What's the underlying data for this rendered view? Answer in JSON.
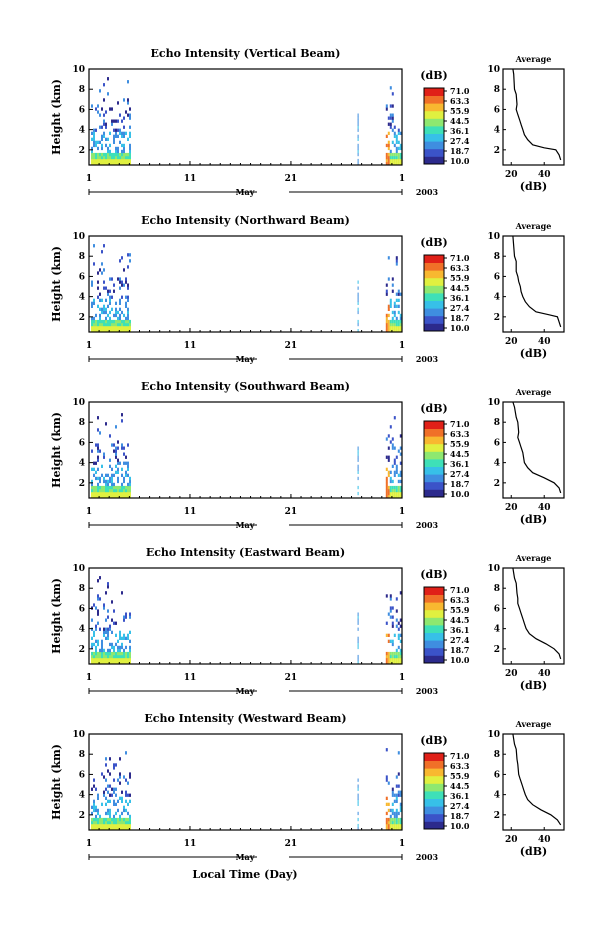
{
  "figure": {
    "x_axis_label": "Local Time (Day)",
    "month_label": "May",
    "year_label": "2003",
    "y_axis_label": "Height (km)",
    "colorbar_title": "(dB)",
    "colorbar_ticks": [
      "71.0",
      "63.3",
      "55.9",
      "44.5",
      "36.1",
      "27.4",
      "18.7",
      "10.0"
    ],
    "x_ticks": [
      "1",
      "11",
      "21",
      "1"
    ],
    "y_ticks": [
      "2",
      "4",
      "6",
      "8",
      "10"
    ],
    "avg_title": "Average",
    "avg_xlabel": "(dB)",
    "avg_x_ticks": [
      "20",
      "40"
    ],
    "colors": {
      "colorscale": [
        "#2c2a8c",
        "#3b53c8",
        "#3f8ee0",
        "#37c0e8",
        "#3ee0b8",
        "#8ee870",
        "#e0f040",
        "#f8b830",
        "#f07028",
        "#e02018"
      ]
    }
  },
  "chart_data": [
    {
      "type": "heatmap",
      "title": "Echo Intensity (Vertical Beam)",
      "x_range_days": [
        1,
        32
      ],
      "ylim": [
        0.5,
        10
      ],
      "ylabel": "Height (km)",
      "xlabel": "May",
      "color_range_db": [
        10.0,
        71.0
      ],
      "data_periods": [
        [
          1.2,
          5.0
        ],
        [
          27.6,
          27.7
        ],
        [
          30.4,
          31.8
        ]
      ],
      "average_profile": {
        "xlim": [
          15,
          52
        ],
        "ylim": [
          0.5,
          10
        ],
        "points": [
          [
            21,
            10
          ],
          [
            21.5,
            9.5
          ],
          [
            22,
            8
          ],
          [
            23,
            7.5
          ],
          [
            23.5,
            6.5
          ],
          [
            23,
            6
          ],
          [
            24,
            5.5
          ],
          [
            25,
            5
          ],
          [
            26,
            4.5
          ],
          [
            27,
            4
          ],
          [
            28,
            3.5
          ],
          [
            30,
            3
          ],
          [
            33,
            2.5
          ],
          [
            40,
            2.2
          ],
          [
            47,
            2.0
          ],
          [
            49,
            1.5
          ],
          [
            50,
            1.0
          ]
        ]
      }
    },
    {
      "type": "heatmap",
      "title": "Echo Intensity (Northward Beam)",
      "x_range_days": [
        1,
        32
      ],
      "ylim": [
        0.5,
        10
      ],
      "ylabel": "Height (km)",
      "xlabel": "May",
      "color_range_db": [
        10.0,
        71.0
      ],
      "data_periods": [
        [
          1.2,
          5.0
        ],
        [
          27.6,
          27.7
        ],
        [
          30.4,
          31.8
        ]
      ],
      "average_profile": {
        "xlim": [
          15,
          52
        ],
        "ylim": [
          0.5,
          10
        ],
        "points": [
          [
            21,
            10
          ],
          [
            21.5,
            9
          ],
          [
            22,
            8
          ],
          [
            23,
            7.5
          ],
          [
            23,
            6.5
          ],
          [
            24,
            6
          ],
          [
            24.5,
            5.5
          ],
          [
            25.5,
            5
          ],
          [
            26,
            4.5
          ],
          [
            27,
            4
          ],
          [
            28.5,
            3.5
          ],
          [
            31,
            3
          ],
          [
            35,
            2.5
          ],
          [
            43,
            2.2
          ],
          [
            48,
            2.0
          ],
          [
            49,
            1.5
          ],
          [
            50,
            1.0
          ]
        ]
      }
    },
    {
      "type": "heatmap",
      "title": "Echo Intensity (Southward Beam)",
      "x_range_days": [
        1,
        32
      ],
      "ylim": [
        0.5,
        10
      ],
      "ylabel": "Height (km)",
      "xlabel": "May",
      "color_range_db": [
        10.0,
        71.0
      ],
      "data_periods": [
        [
          1.2,
          5.0
        ],
        [
          27.6,
          27.7
        ],
        [
          30.4,
          31.8
        ]
      ],
      "average_profile": {
        "xlim": [
          15,
          52
        ],
        "ylim": [
          0.5,
          10
        ],
        "points": [
          [
            21,
            10
          ],
          [
            22,
            9.5
          ],
          [
            23,
            8.5
          ],
          [
            24,
            8
          ],
          [
            24.5,
            7
          ],
          [
            24,
            6.5
          ],
          [
            25,
            6
          ],
          [
            26,
            5.5
          ],
          [
            27,
            5
          ],
          [
            27.5,
            4.5
          ],
          [
            28,
            4
          ],
          [
            30,
            3.5
          ],
          [
            33,
            3
          ],
          [
            40,
            2.5
          ],
          [
            46,
            2.0
          ],
          [
            49,
            1.5
          ],
          [
            50,
            1.0
          ]
        ]
      }
    },
    {
      "type": "heatmap",
      "title": "Echo Intensity (Eastward Beam)",
      "x_range_days": [
        1,
        32
      ],
      "ylim": [
        0.5,
        10
      ],
      "ylabel": "Height (km)",
      "xlabel": "May",
      "color_range_db": [
        10.0,
        71.0
      ],
      "data_periods": [
        [
          1.2,
          5.0
        ],
        [
          27.6,
          27.7
        ],
        [
          30.4,
          31.8
        ]
      ],
      "average_profile": {
        "xlim": [
          15,
          52
        ],
        "ylim": [
          0.5,
          10
        ],
        "points": [
          [
            21,
            10
          ],
          [
            21.5,
            9.5
          ],
          [
            22,
            9
          ],
          [
            23,
            8.5
          ],
          [
            23.5,
            7.5
          ],
          [
            24,
            7
          ],
          [
            24,
            6.5
          ],
          [
            25,
            6
          ],
          [
            26,
            5.5
          ],
          [
            27,
            5
          ],
          [
            28,
            4.5
          ],
          [
            29,
            4
          ],
          [
            31,
            3.5
          ],
          [
            35,
            3
          ],
          [
            41,
            2.5
          ],
          [
            46,
            2.0
          ],
          [
            49,
            1.5
          ],
          [
            50,
            1.0
          ]
        ]
      }
    },
    {
      "type": "heatmap",
      "title": "Echo Intensity (Westward Beam)",
      "x_range_days": [
        1,
        32
      ],
      "ylim": [
        0.5,
        10
      ],
      "ylabel": "Height (km)",
      "xlabel": "May",
      "color_range_db": [
        10.0,
        71.0
      ],
      "data_periods": [
        [
          1.2,
          5.0
        ],
        [
          27.6,
          27.7
        ],
        [
          30.4,
          31.8
        ]
      ],
      "average_profile": {
        "xlim": [
          15,
          52
        ],
        "ylim": [
          0.5,
          10
        ],
        "points": [
          [
            21,
            10
          ],
          [
            21.5,
            9.5
          ],
          [
            22,
            9
          ],
          [
            23,
            8.5
          ],
          [
            23.5,
            7.5
          ],
          [
            24,
            7
          ],
          [
            24.5,
            6
          ],
          [
            25.5,
            5.5
          ],
          [
            26.5,
            5
          ],
          [
            27.5,
            4.5
          ],
          [
            28.5,
            4
          ],
          [
            30,
            3.5
          ],
          [
            33,
            3
          ],
          [
            38,
            2.5
          ],
          [
            44,
            2.0
          ],
          [
            48,
            1.5
          ],
          [
            50,
            1.0
          ]
        ]
      }
    }
  ]
}
